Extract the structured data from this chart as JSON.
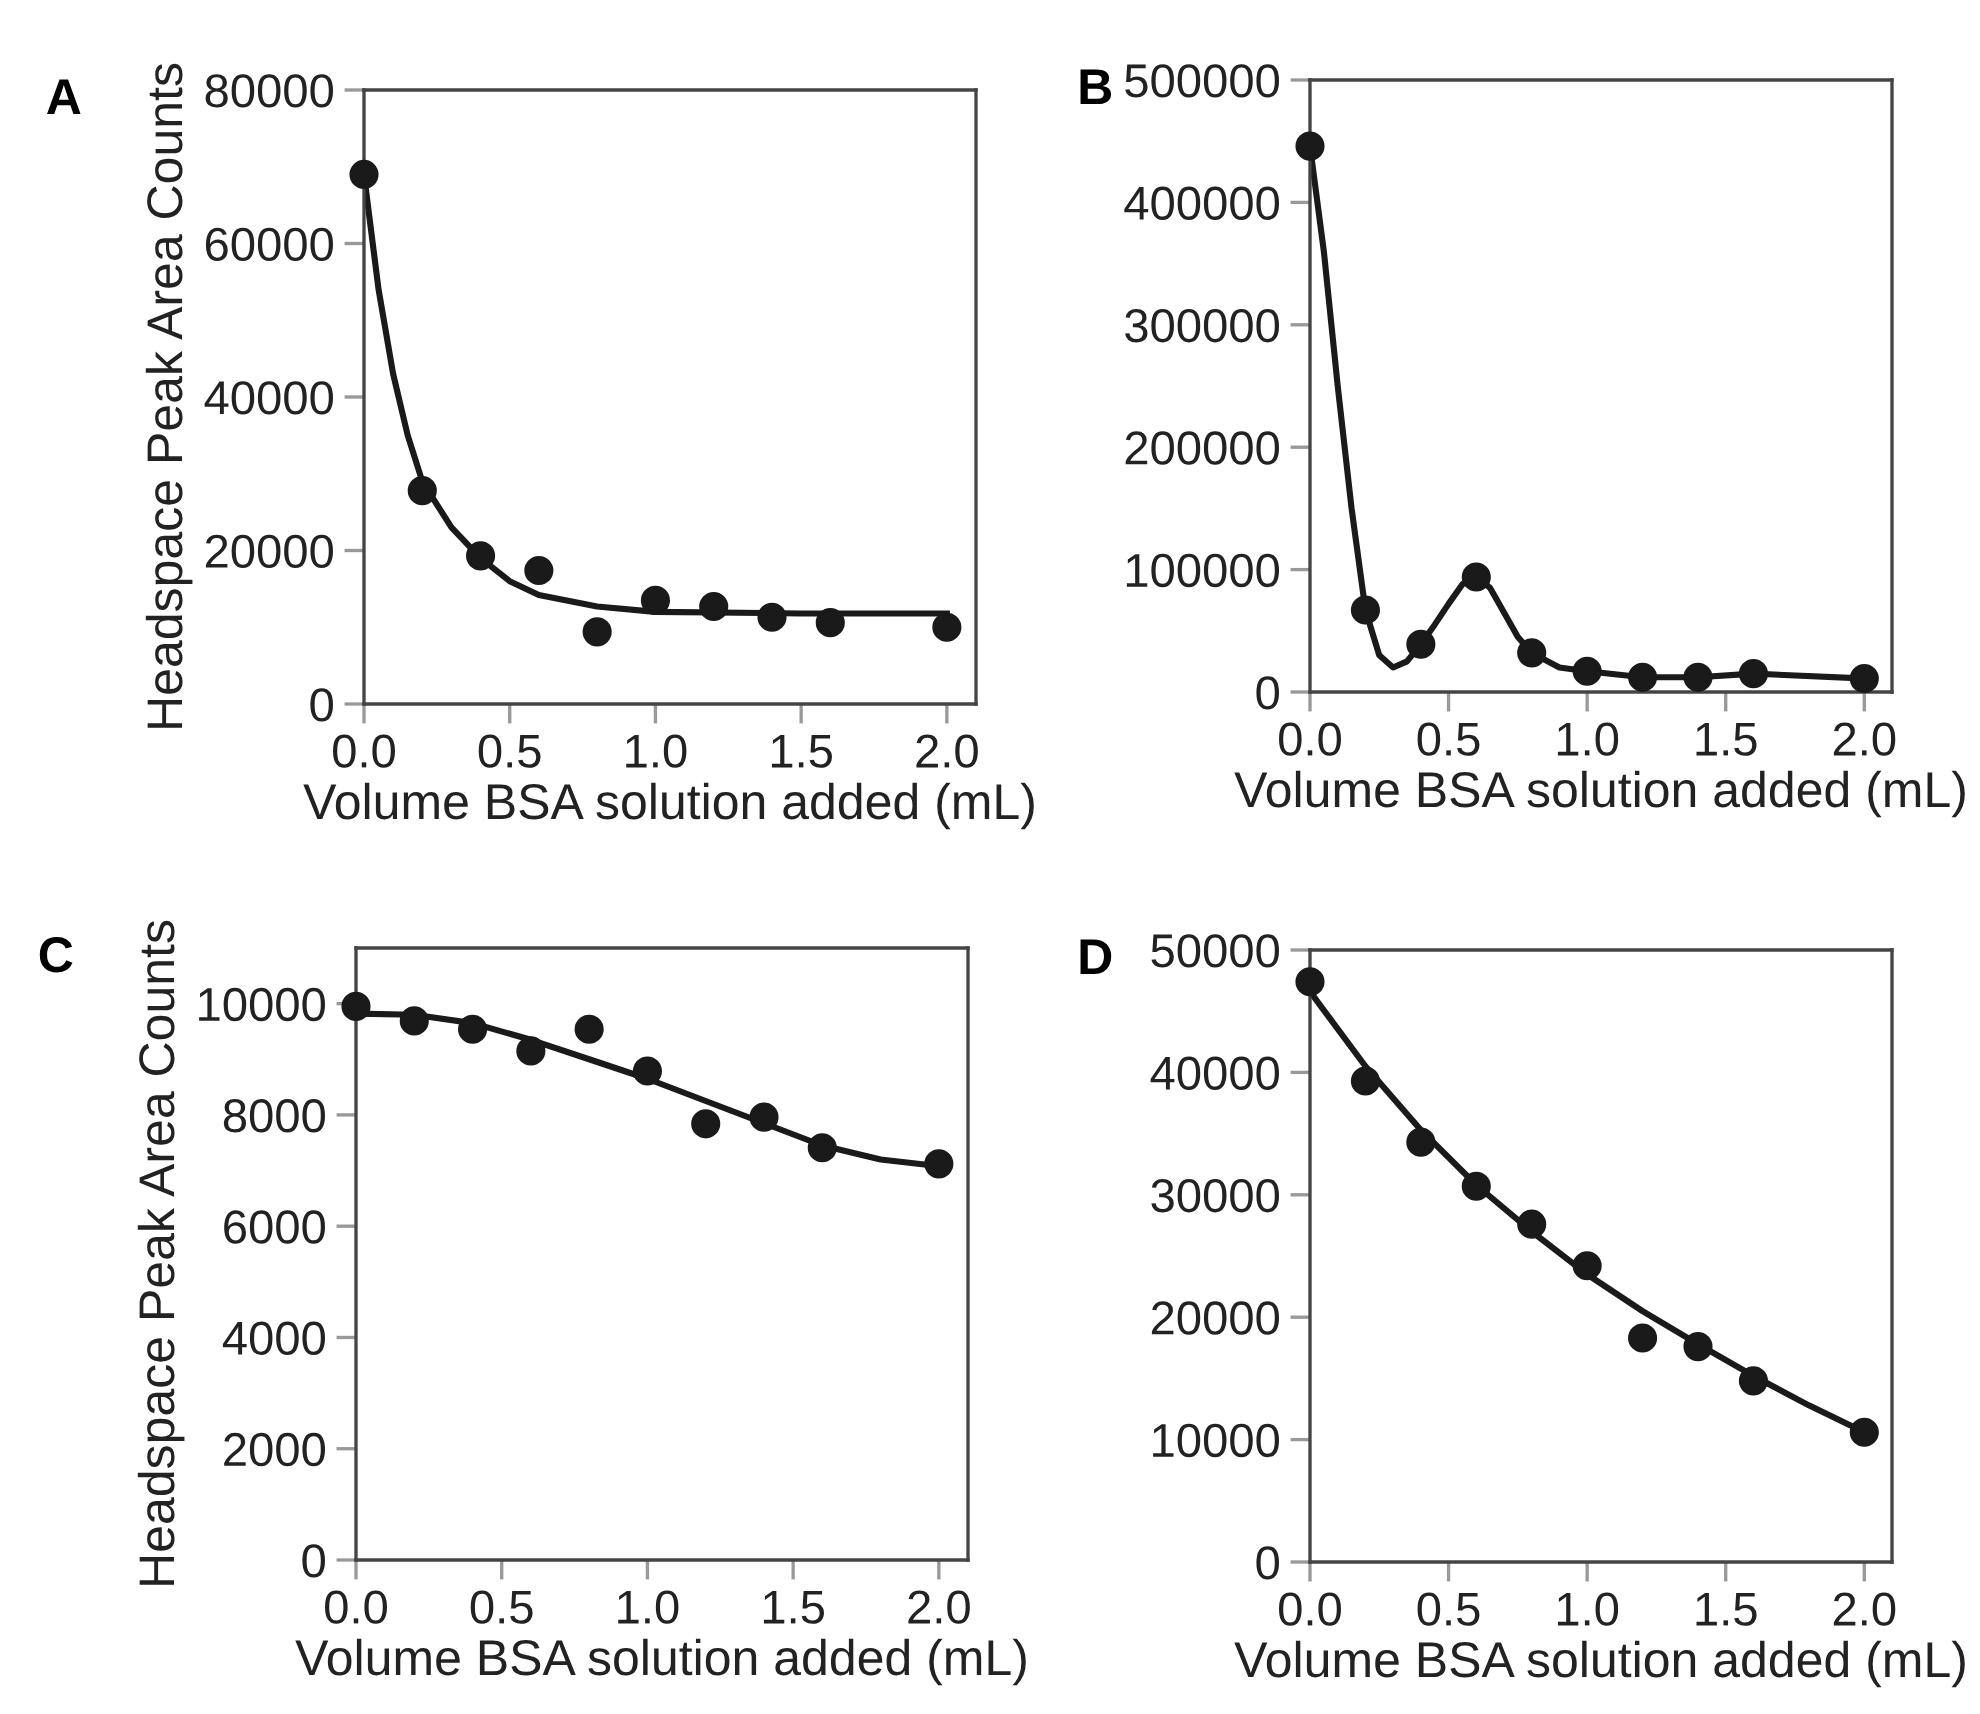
{
  "chart_data": [
    {
      "type": "scatter",
      "title": "A",
      "xlabel": "Volume BSA solution added (mL)",
      "ylabel": "Headspace Peak Area Counts",
      "xlim": [
        0,
        2.1
      ],
      "ylim": [
        0,
        80000
      ],
      "xticks": [
        {
          "value": 0,
          "label": "0.0"
        },
        {
          "value": 0.5,
          "label": "0.5"
        },
        {
          "value": 1,
          "label": "1.0"
        },
        {
          "value": 1.5,
          "label": "1.5"
        },
        {
          "value": 2,
          "label": "2.0"
        }
      ],
      "yticks": [
        0,
        20000,
        40000,
        60000,
        80000
      ],
      "grid": false,
      "legend": false,
      "series": [
        {
          "marker": "circle",
          "color": "#1a1a1a",
          "x": [
            0,
            0.2,
            0.4,
            0.6,
            0.8,
            1.0,
            1.2,
            1.4,
            1.6,
            2.0
          ],
          "values": [
            69000,
            27800,
            19300,
            17400,
            9400,
            13500,
            12700,
            11300,
            10600,
            10000
          ]
        },
        {
          "type": "line",
          "marker": "none",
          "line_style": "solid",
          "color": "#1a1a1a",
          "x": [
            0,
            0.05,
            0.1,
            0.15,
            0.2,
            0.3,
            0.4,
            0.5,
            0.6,
            0.8,
            1.0,
            1.5,
            2.0
          ],
          "values": [
            69000,
            54000,
            43000,
            35000,
            29000,
            23000,
            19000,
            16000,
            14200,
            12700,
            12000,
            11800,
            11800
          ]
        }
      ]
    },
    {
      "type": "scatter",
      "title": "B",
      "xlabel": "Volume BSA solution added (mL)",
      "xlim": [
        0,
        2.1
      ],
      "ylim": [
        0,
        500000
      ],
      "xticks": [
        {
          "value": 0,
          "label": "0.0"
        },
        {
          "value": 0.5,
          "label": "0.5"
        },
        {
          "value": 1,
          "label": "1.0"
        },
        {
          "value": 1.5,
          "label": "1.5"
        },
        {
          "value": 2,
          "label": "2.0"
        }
      ],
      "yticks": [
        0,
        100000,
        200000,
        300000,
        400000,
        500000
      ],
      "grid": false,
      "legend": false,
      "series": [
        {
          "marker": "circle",
          "color": "#1a1a1a",
          "x": [
            0,
            0.2,
            0.4,
            0.6,
            0.8,
            1.0,
            1.2,
            1.4,
            1.6,
            2.0
          ],
          "values": [
            446000,
            67000,
            39000,
            94000,
            32000,
            17000,
            12000,
            12000,
            15000,
            11000
          ]
        },
        {
          "type": "line",
          "marker": "none",
          "line_style": "solid",
          "color": "#1a1a1a",
          "x": [
            0,
            0.05,
            0.1,
            0.15,
            0.2,
            0.25,
            0.3,
            0.35,
            0.4,
            0.45,
            0.5,
            0.55,
            0.6,
            0.65,
            0.7,
            0.75,
            0.8,
            0.9,
            1.0,
            1.2,
            1.4,
            1.6,
            2.0
          ],
          "values": [
            446000,
            360000,
            250000,
            150000,
            67000,
            30000,
            20000,
            25000,
            39000,
            55000,
            72000,
            88000,
            94000,
            85000,
            65000,
            45000,
            32000,
            20000,
            17000,
            12000,
            12000,
            15000,
            11000
          ]
        }
      ]
    },
    {
      "type": "scatter",
      "title": "C",
      "xlabel": "Volume BSA solution added (mL)",
      "ylabel": "Headspace Peak Area Counts",
      "xlim": [
        0,
        2.1
      ],
      "ylim": [
        0,
        11000
      ],
      "xticks": [
        {
          "value": 0,
          "label": "0.0"
        },
        {
          "value": 0.5,
          "label": "0.5"
        },
        {
          "value": 1,
          "label": "1.0"
        },
        {
          "value": 1.5,
          "label": "1.5"
        },
        {
          "value": 2,
          "label": "2.0"
        }
      ],
      "yticks": [
        0,
        2000,
        4000,
        6000,
        8000,
        10000
      ],
      "grid": false,
      "legend": false,
      "series": [
        {
          "marker": "circle",
          "color": "#1a1a1a",
          "x": [
            0,
            0.2,
            0.4,
            0.6,
            0.8,
            1.0,
            1.2,
            1.4,
            1.6,
            2.0
          ],
          "values": [
            9950,
            9690,
            9540,
            9150,
            9540,
            8790,
            7840,
            7960,
            7410,
            7120
          ]
        },
        {
          "type": "line",
          "marker": "none",
          "line_style": "solid",
          "color": "#1a1a1a",
          "x": [
            0,
            0.2,
            0.4,
            0.6,
            0.8,
            1.0,
            1.2,
            1.4,
            1.6,
            1.8,
            2.0
          ],
          "values": [
            9820,
            9800,
            9650,
            9350,
            9000,
            8650,
            8250,
            7850,
            7450,
            7200,
            7080
          ]
        }
      ]
    },
    {
      "type": "scatter",
      "title": "D",
      "xlabel": "Volume BSA solution added (mL)",
      "xlim": [
        0,
        2.1
      ],
      "ylim": [
        0,
        50000
      ],
      "xticks": [
        {
          "value": 0,
          "label": "0.0"
        },
        {
          "value": 0.5,
          "label": "0.5"
        },
        {
          "value": 1,
          "label": "1.0"
        },
        {
          "value": 1.5,
          "label": "1.5"
        },
        {
          "value": 2,
          "label": "2.0"
        }
      ],
      "yticks": [
        0,
        10000,
        20000,
        30000,
        40000,
        50000
      ],
      "grid": false,
      "legend": false,
      "series": [
        {
          "marker": "circle",
          "color": "#1a1a1a",
          "x": [
            0,
            0.2,
            0.4,
            0.6,
            0.8,
            1.0,
            1.2,
            1.4,
            1.6,
            2.0
          ],
          "values": [
            47400,
            39300,
            34300,
            30700,
            27600,
            24200,
            18300,
            17600,
            14800,
            10600
          ]
        },
        {
          "type": "line",
          "marker": "none",
          "line_style": "solid",
          "color": "#1a1a1a",
          "x": [
            0,
            0.2,
            0.4,
            0.6,
            0.8,
            1.0,
            1.2,
            1.4,
            1.6,
            1.8,
            2.0
          ],
          "values": [
            46600,
            40500,
            35300,
            30800,
            27000,
            23500,
            20500,
            17800,
            15200,
            12800,
            10600
          ]
        }
      ]
    }
  ]
}
